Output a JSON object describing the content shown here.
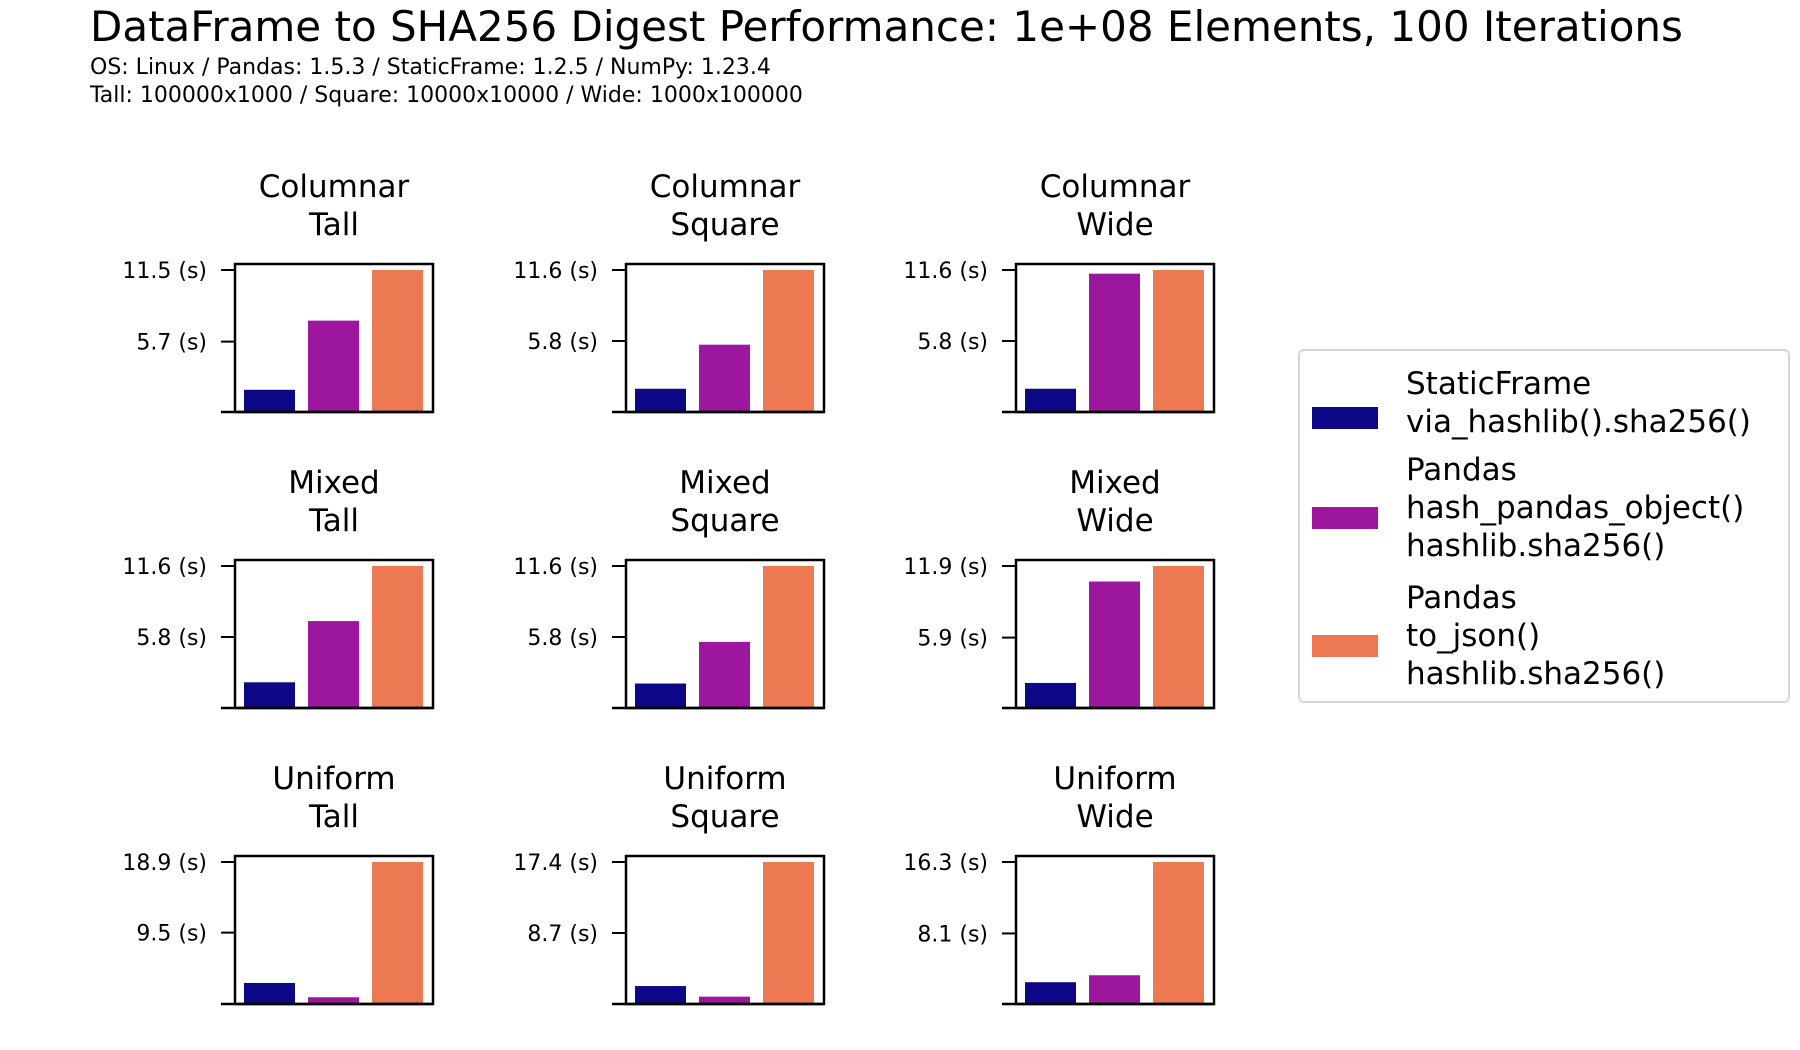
{
  "title": "DataFrame to SHA256 Digest Performance: 1e+08 Elements, 100 Iterations",
  "subtitle_lines": [
    "OS: Linux / Pandas: 1.5.3 / StaticFrame: 1.2.5 / NumPy: 1.23.4",
    "Tall: 100000x1000 / Square: 10000x10000 / Wide: 1000x100000"
  ],
  "colors": {
    "StaticFrame": "#0d0887",
    "PandasHash": "#9c179e",
    "PandasJson": "#ed7953"
  },
  "legend": [
    {
      "label_lines": [
        "StaticFrame",
        "via_hashlib().sha256()"
      ],
      "color": "#0d0887"
    },
    {
      "label_lines": [
        "Pandas",
        "hash_pandas_object()",
        "hashlib.sha256()"
      ],
      "color": "#9c179e"
    },
    {
      "label_lines": [
        "Pandas",
        "to_json()",
        "hashlib.sha256()"
      ],
      "color": "#ed7953"
    }
  ],
  "chart_data": [
    {
      "type": "bar",
      "title_lines": [
        "Columnar",
        "Tall"
      ],
      "series_names": [
        "StaticFrame via_hashlib().sha256()",
        "Pandas hash_pandas_object() hashlib.sha256()",
        "Pandas to_json() hashlib.sha256()"
      ],
      "values": [
        1.8,
        7.4,
        11.5
      ],
      "yticks": [
        5.7,
        11.5
      ],
      "ytick_labels": [
        "5.7 (s)",
        "11.5 (s)"
      ],
      "ylim": [
        0,
        11.5
      ]
    },
    {
      "type": "bar",
      "title_lines": [
        "Columnar",
        "Square"
      ],
      "series_names": [
        "StaticFrame via_hashlib().sha256()",
        "Pandas hash_pandas_object() hashlib.sha256()",
        "Pandas to_json() hashlib.sha256()"
      ],
      "values": [
        1.9,
        5.5,
        11.6
      ],
      "yticks": [
        5.8,
        11.6
      ],
      "ytick_labels": [
        "5.8 (s)",
        "11.6 (s)"
      ],
      "ylim": [
        0,
        11.6
      ]
    },
    {
      "type": "bar",
      "title_lines": [
        "Columnar",
        "Wide"
      ],
      "series_names": [
        "StaticFrame via_hashlib().sha256()",
        "Pandas hash_pandas_object() hashlib.sha256()",
        "Pandas to_json() hashlib.sha256()"
      ],
      "values": [
        1.9,
        11.3,
        11.6
      ],
      "yticks": [
        5.8,
        11.6
      ],
      "ytick_labels": [
        "5.8 (s)",
        "11.6 (s)"
      ],
      "ylim": [
        0,
        11.6
      ]
    },
    {
      "type": "bar",
      "title_lines": [
        "Mixed",
        "Tall"
      ],
      "series_names": [
        "StaticFrame via_hashlib().sha256()",
        "Pandas hash_pandas_object() hashlib.sha256()",
        "Pandas to_json() hashlib.sha256()"
      ],
      "values": [
        2.1,
        7.1,
        11.6
      ],
      "yticks": [
        5.8,
        11.6
      ],
      "ytick_labels": [
        "5.8 (s)",
        "11.6 (s)"
      ],
      "ylim": [
        0,
        11.6
      ]
    },
    {
      "type": "bar",
      "title_lines": [
        "Mixed",
        "Square"
      ],
      "series_names": [
        "StaticFrame via_hashlib().sha256()",
        "Pandas hash_pandas_object() hashlib.sha256()",
        "Pandas to_json() hashlib.sha256()"
      ],
      "values": [
        2.0,
        5.4,
        11.6
      ],
      "yticks": [
        5.8,
        11.6
      ],
      "ytick_labels": [
        "5.8 (s)",
        "11.6 (s)"
      ],
      "ylim": [
        0,
        11.6
      ]
    },
    {
      "type": "bar",
      "title_lines": [
        "Mixed",
        "Wide"
      ],
      "series_names": [
        "StaticFrame via_hashlib().sha256()",
        "Pandas hash_pandas_object() hashlib.sha256()",
        "Pandas to_json() hashlib.sha256()"
      ],
      "values": [
        2.1,
        10.6,
        11.9
      ],
      "yticks": [
        5.9,
        11.9
      ],
      "ytick_labels": [
        "5.9 (s)",
        "11.9 (s)"
      ],
      "ylim": [
        0,
        11.9
      ]
    },
    {
      "type": "bar",
      "title_lines": [
        "Uniform",
        "Tall"
      ],
      "series_names": [
        "StaticFrame via_hashlib().sha256()",
        "Pandas hash_pandas_object() hashlib.sha256()",
        "Pandas to_json() hashlib.sha256()"
      ],
      "values": [
        2.8,
        0.9,
        18.9
      ],
      "yticks": [
        9.5,
        18.9
      ],
      "ytick_labels": [
        "9.5 (s)",
        "18.9 (s)"
      ],
      "ylim": [
        0,
        18.9
      ]
    },
    {
      "type": "bar",
      "title_lines": [
        "Uniform",
        "Square"
      ],
      "series_names": [
        "StaticFrame via_hashlib().sha256()",
        "Pandas hash_pandas_object() hashlib.sha256()",
        "Pandas to_json() hashlib.sha256()"
      ],
      "values": [
        2.2,
        0.9,
        17.4
      ],
      "yticks": [
        8.7,
        17.4
      ],
      "ytick_labels": [
        "8.7 (s)",
        "17.4 (s)"
      ],
      "ylim": [
        0,
        17.4
      ]
    },
    {
      "type": "bar",
      "title_lines": [
        "Uniform",
        "Wide"
      ],
      "series_names": [
        "StaticFrame via_hashlib().sha256()",
        "Pandas hash_pandas_object() hashlib.sha256()",
        "Pandas to_json() hashlib.sha256()"
      ],
      "values": [
        2.5,
        3.3,
        16.3
      ],
      "yticks": [
        8.1,
        16.3
      ],
      "ytick_labels": [
        "8.1 (s)",
        "16.3 (s)"
      ],
      "ylim": [
        0,
        16.3
      ]
    }
  ]
}
